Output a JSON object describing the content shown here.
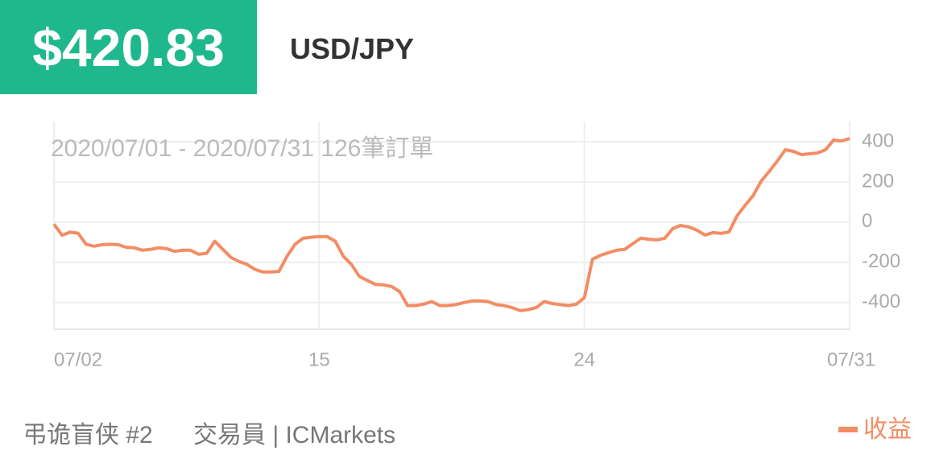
{
  "header": {
    "price": "$420.83",
    "pair": "USD/JPY"
  },
  "chart_data": {
    "type": "line",
    "subtitle": "2020/07/01 - 2020/07/31  126筆訂單",
    "categories": [
      "07/02",
      null,
      null,
      null,
      null,
      null,
      null,
      null,
      null,
      null,
      null,
      null,
      null,
      null,
      null,
      null,
      null,
      null,
      null,
      null,
      null,
      null,
      null,
      null,
      null,
      null,
      null,
      null,
      null,
      null,
      null,
      null,
      null,
      "15",
      null,
      null,
      null,
      null,
      null,
      null,
      null,
      null,
      null,
      null,
      null,
      null,
      null,
      null,
      null,
      null,
      null,
      null,
      null,
      null,
      null,
      null,
      null,
      null,
      null,
      null,
      null,
      null,
      null,
      null,
      null,
      null,
      "24",
      null,
      null,
      null,
      null,
      null,
      null,
      null,
      null,
      null,
      null,
      null,
      null,
      null,
      null,
      null,
      null,
      null,
      null,
      null,
      null,
      null,
      null,
      null,
      null,
      null,
      null,
      null,
      null,
      null,
      null,
      null,
      null,
      "07/31"
    ],
    "series": [
      {
        "name": "收益",
        "color": "#f28d65",
        "values": [
          -10,
          -65,
          -50,
          -55,
          -110,
          -120,
          -112,
          -110,
          -112,
          -125,
          -128,
          -140,
          -136,
          -128,
          -132,
          -145,
          -140,
          -140,
          -160,
          -155,
          -95,
          -135,
          -175,
          -195,
          -210,
          -235,
          -248,
          -248,
          -245,
          -170,
          -110,
          -80,
          -75,
          -72,
          -72,
          -95,
          -170,
          -210,
          -270,
          -290,
          -310,
          -312,
          -320,
          -345,
          -415,
          -415,
          -408,
          -395,
          -415,
          -415,
          -410,
          -400,
          -392,
          -392,
          -395,
          -410,
          -415,
          -425,
          -440,
          -435,
          -425,
          -395,
          -405,
          -410,
          -415,
          -408,
          -375,
          -185,
          -165,
          -152,
          -140,
          -136,
          -108,
          -80,
          -85,
          -88,
          -80,
          -32,
          -16,
          -24,
          -40,
          -64,
          -52,
          -56,
          -48,
          32,
          84,
          132,
          204,
          252,
          304,
          360,
          352,
          336,
          340,
          344,
          360,
          408,
          404,
          416
        ]
      }
    ],
    "ylim": [
      -525,
      500
    ],
    "yticks": [
      400,
      200,
      0,
      -200,
      -400
    ],
    "grid": true,
    "legend": "bottom-right"
  },
  "footer": {
    "trader": "弔诡盲侠 #2",
    "role": "交易員 | ICMarkets"
  }
}
